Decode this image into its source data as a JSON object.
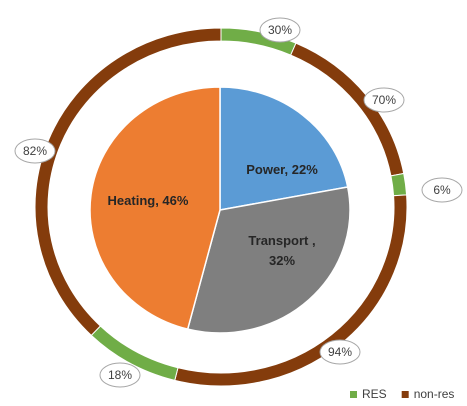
{
  "chart_data": {
    "type": "pie-donut",
    "values": [
      22,
      32,
      46
    ],
    "value_labels": [
      "Power, 22%",
      "Transport , 32%",
      "Heating, 46%"
    ],
    "colors": [
      "#5b9bd5",
      "#7f7f7f",
      "#ed7d31"
    ],
    "series": [
      {
        "name": "RES",
        "color": "#70ad47",
        "values": [
          30,
          6,
          18
        ],
        "value_labels": [
          "30%",
          "6%",
          "18%"
        ]
      },
      {
        "name": "non-res",
        "color": "#843c0c",
        "values": [
          70,
          94,
          82
        ],
        "value_labels": [
          "70%",
          "94%",
          "82%"
        ]
      }
    ],
    "legend": "bottom-right"
  }
}
